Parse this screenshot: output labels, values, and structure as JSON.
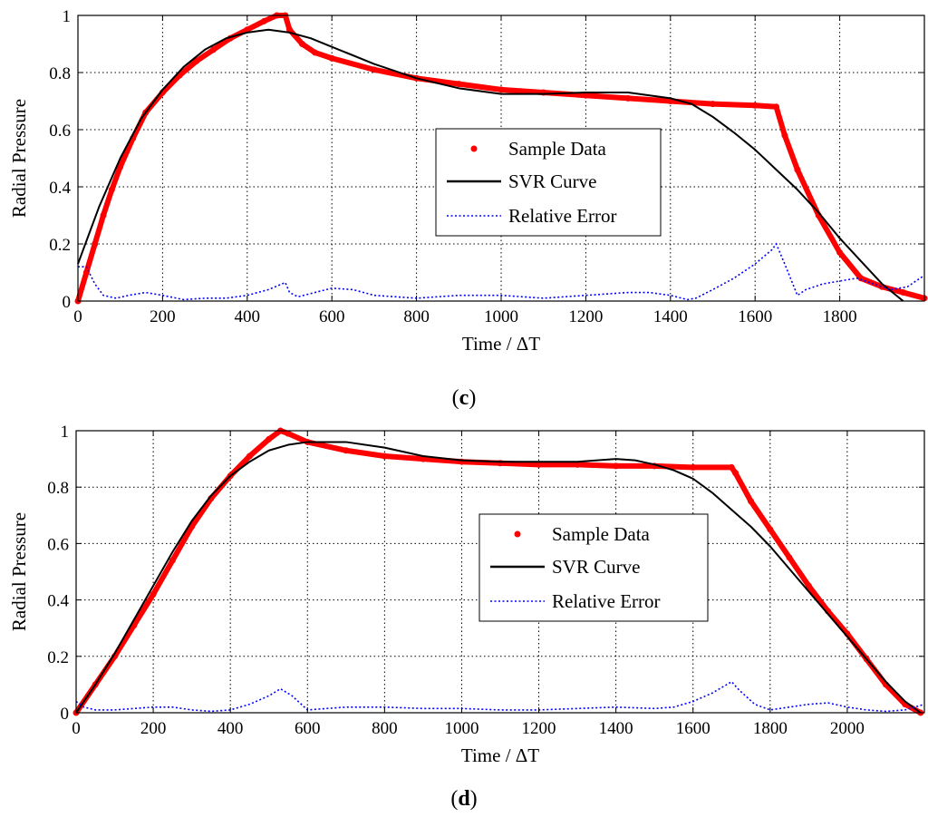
{
  "chart_data": [
    {
      "type": "line",
      "caption": "c",
      "xlabel": "Time / ΔT",
      "ylabel": "Radial Pressure",
      "xlim": [
        0,
        2000
      ],
      "ylim": [
        0,
        1
      ],
      "xticks": [
        0,
        200,
        400,
        600,
        800,
        1000,
        1200,
        1400,
        1600,
        1800
      ],
      "yticks": [
        0,
        0.2,
        0.4,
        0.6,
        0.8,
        1
      ],
      "ytick_labels": [
        "0",
        "0.2",
        "0.4",
        "0.6",
        "0.8",
        "1"
      ],
      "grid": true,
      "legend_position": "center-right",
      "series": [
        {
          "name": "Sample Data",
          "style": "red-points",
          "color": "#ff0000",
          "x": [
            0,
            20,
            40,
            60,
            80,
            100,
            130,
            160,
            200,
            240,
            280,
            320,
            360,
            400,
            440,
            470,
            490,
            500,
            530,
            560,
            600,
            700,
            800,
            900,
            1000,
            1100,
            1200,
            1300,
            1400,
            1500,
            1600,
            1650,
            1670,
            1700,
            1750,
            1800,
            1850,
            1900,
            1950,
            2000
          ],
          "y": [
            0,
            0.1,
            0.2,
            0.3,
            0.39,
            0.47,
            0.57,
            0.66,
            0.73,
            0.79,
            0.84,
            0.88,
            0.92,
            0.95,
            0.98,
            1.0,
            1.0,
            0.95,
            0.9,
            0.87,
            0.85,
            0.81,
            0.78,
            0.76,
            0.74,
            0.73,
            0.72,
            0.71,
            0.7,
            0.69,
            0.685,
            0.68,
            0.58,
            0.46,
            0.3,
            0.17,
            0.08,
            0.05,
            0.03,
            0.01
          ]
        },
        {
          "name": "SVR Curve",
          "style": "black-solid",
          "color": "#000000",
          "x": [
            0,
            50,
            100,
            150,
            200,
            250,
            300,
            350,
            400,
            450,
            500,
            550,
            600,
            700,
            800,
            900,
            1000,
            1100,
            1200,
            1300,
            1400,
            1450,
            1500,
            1550,
            1600,
            1650,
            1700,
            1750,
            1800,
            1850,
            1900,
            1950
          ],
          "y": [
            0.13,
            0.33,
            0.5,
            0.64,
            0.74,
            0.82,
            0.88,
            0.92,
            0.94,
            0.95,
            0.94,
            0.92,
            0.89,
            0.83,
            0.78,
            0.745,
            0.725,
            0.725,
            0.73,
            0.73,
            0.71,
            0.69,
            0.645,
            0.59,
            0.53,
            0.46,
            0.39,
            0.31,
            0.22,
            0.14,
            0.06,
            0.0
          ]
        },
        {
          "name": "Relative Error",
          "style": "blue-dotted",
          "color": "#0000ff",
          "x": [
            0,
            20,
            40,
            60,
            90,
            120,
            160,
            200,
            250,
            300,
            350,
            400,
            450,
            490,
            500,
            520,
            560,
            600,
            650,
            700,
            800,
            900,
            1000,
            1100,
            1200,
            1300,
            1350,
            1400,
            1440,
            1460,
            1500,
            1550,
            1600,
            1640,
            1650,
            1670,
            1700,
            1720,
            1760,
            1800,
            1840,
            1880,
            1920,
            1960,
            2000
          ],
          "y": [
            0.12,
            0.12,
            0.06,
            0.02,
            0.01,
            0.02,
            0.03,
            0.02,
            0.005,
            0.01,
            0.01,
            0.02,
            0.04,
            0.065,
            0.03,
            0.015,
            0.03,
            0.045,
            0.04,
            0.02,
            0.01,
            0.02,
            0.02,
            0.01,
            0.02,
            0.03,
            0.03,
            0.02,
            0.005,
            0.01,
            0.04,
            0.08,
            0.13,
            0.18,
            0.2,
            0.13,
            0.02,
            0.04,
            0.06,
            0.07,
            0.08,
            0.06,
            0.04,
            0.05,
            0.09
          ]
        }
      ]
    },
    {
      "type": "line",
      "caption": "d",
      "xlabel": "Time / ΔT",
      "ylabel": "Radial Pressure",
      "xlim": [
        0,
        2200
      ],
      "ylim": [
        0,
        1
      ],
      "xticks": [
        0,
        200,
        400,
        600,
        800,
        1000,
        1200,
        1400,
        1600,
        1800,
        2000
      ],
      "yticks": [
        0,
        0.2,
        0.4,
        0.6,
        0.8,
        1
      ],
      "ytick_labels": [
        "0",
        "0.2",
        "0.4",
        "0.6",
        "0.8",
        "1"
      ],
      "grid": true,
      "legend_position": "center-right",
      "series": [
        {
          "name": "Sample Data",
          "style": "red-points",
          "color": "#ff0000",
          "x": [
            0,
            50,
            100,
            150,
            200,
            250,
            300,
            350,
            400,
            450,
            500,
            530,
            550,
            600,
            700,
            800,
            900,
            1000,
            1100,
            1200,
            1300,
            1400,
            1500,
            1600,
            1700,
            1710,
            1750,
            1800,
            1850,
            1900,
            1950,
            2000,
            2050,
            2100,
            2150,
            2190
          ],
          "y": [
            0,
            0.1,
            0.2,
            0.31,
            0.42,
            0.54,
            0.66,
            0.76,
            0.84,
            0.91,
            0.97,
            1.0,
            0.99,
            0.96,
            0.93,
            0.91,
            0.9,
            0.89,
            0.885,
            0.88,
            0.88,
            0.875,
            0.875,
            0.87,
            0.87,
            0.85,
            0.75,
            0.65,
            0.55,
            0.45,
            0.36,
            0.28,
            0.19,
            0.1,
            0.03,
            0.0
          ]
        },
        {
          "name": "SVR Curve",
          "style": "black-solid",
          "color": "#000000",
          "x": [
            0,
            50,
            100,
            150,
            200,
            250,
            300,
            350,
            400,
            450,
            500,
            550,
            600,
            650,
            700,
            800,
            900,
            1000,
            1100,
            1200,
            1300,
            1400,
            1450,
            1500,
            1550,
            1600,
            1650,
            1700,
            1750,
            1800,
            1850,
            1900,
            1950,
            2000,
            2050,
            2100,
            2150,
            2190
          ],
          "y": [
            0,
            0.1,
            0.21,
            0.33,
            0.45,
            0.57,
            0.68,
            0.77,
            0.84,
            0.89,
            0.93,
            0.95,
            0.96,
            0.96,
            0.96,
            0.94,
            0.91,
            0.895,
            0.89,
            0.89,
            0.89,
            0.9,
            0.895,
            0.88,
            0.86,
            0.83,
            0.78,
            0.72,
            0.66,
            0.59,
            0.51,
            0.43,
            0.35,
            0.27,
            0.19,
            0.11,
            0.04,
            0.0
          ]
        },
        {
          "name": "Relative Error",
          "style": "blue-dotted",
          "color": "#0000ff",
          "x": [
            0,
            20,
            50,
            100,
            150,
            200,
            250,
            300,
            350,
            400,
            450,
            500,
            530,
            560,
            600,
            650,
            700,
            800,
            900,
            1000,
            1100,
            1200,
            1300,
            1400,
            1500,
            1550,
            1600,
            1650,
            1700,
            1720,
            1760,
            1800,
            1850,
            1900,
            1950,
            2000,
            2050,
            2100,
            2150,
            2200
          ],
          "y": [
            0.04,
            0.02,
            0.01,
            0.01,
            0.015,
            0.02,
            0.02,
            0.01,
            0.005,
            0.01,
            0.03,
            0.06,
            0.085,
            0.06,
            0.01,
            0.015,
            0.02,
            0.02,
            0.015,
            0.015,
            0.01,
            0.01,
            0.015,
            0.02,
            0.015,
            0.02,
            0.04,
            0.07,
            0.11,
            0.08,
            0.03,
            0.01,
            0.02,
            0.03,
            0.035,
            0.02,
            0.01,
            0.005,
            0.01,
            0.03
          ]
        }
      ]
    }
  ]
}
